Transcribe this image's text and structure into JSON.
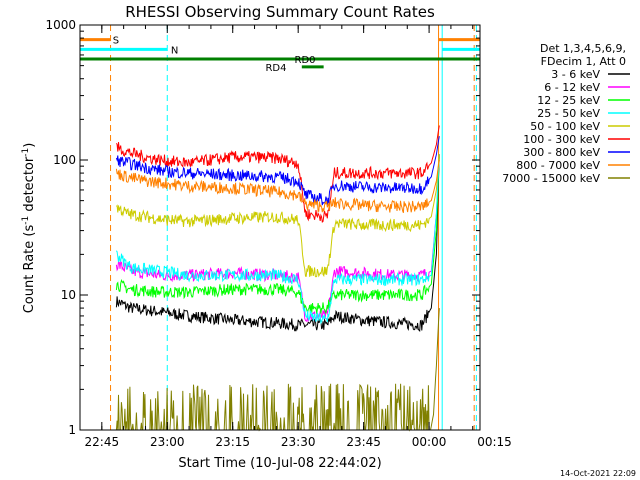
{
  "chart_data": {
    "type": "line",
    "title": "RHESSI Observing Summary Count Rates",
    "xlabel": "Start Time (10-Jul-08 22:44:02)",
    "ylabel_main": "Count Rate (s",
    "ylabel_sup1": "-1",
    "ylabel_mid": " detector",
    "ylabel_sup2": "-1",
    "ylabel_end": ")",
    "y_scale": "log",
    "ylim": [
      1,
      1000
    ],
    "xlim_minutes": [
      -3,
      52
    ],
    "y_ticks": [
      {
        "v": 1,
        "label": "1"
      },
      {
        "v": 10,
        "label": "10"
      },
      {
        "v": 100,
        "label": "100"
      },
      {
        "v": 1000,
        "label": "1000"
      }
    ],
    "x_ticks": [
      {
        "t": 0,
        "label": "22:45"
      },
      {
        "t": 9,
        "label": "23:00"
      },
      {
        "t": 18,
        "label": "23:15"
      },
      {
        "t": 27,
        "label": "23:30"
      },
      {
        "t": 36,
        "label": "23:45"
      },
      {
        "t": 45,
        "label": "00:00"
      },
      {
        "t": 54,
        "label": "00:15"
      }
    ],
    "legend_header": [
      "Det 1,3,4,5,6,9,",
      "FDecim 1, Att 0"
    ],
    "legend_position": "right",
    "series": [
      {
        "name": "3 - 6 keV",
        "color": "#000000",
        "points": [
          [
            2.0,
            9
          ],
          [
            4,
            8
          ],
          [
            8,
            7.5
          ],
          [
            12,
            7
          ],
          [
            18,
            6.5
          ],
          [
            24,
            6.2
          ],
          [
            27,
            6
          ],
          [
            28,
            6
          ],
          [
            31,
            6
          ],
          [
            32,
            7
          ],
          [
            36,
            6.5
          ],
          [
            40,
            6.2
          ],
          [
            44,
            6
          ],
          [
            45.3,
            8
          ],
          [
            46,
            20
          ],
          [
            46.4,
            110
          ]
        ]
      },
      {
        "name": "6 - 12 keV",
        "color": "#ff00ff",
        "points": [
          [
            2.0,
            17
          ],
          [
            4,
            15
          ],
          [
            8,
            14
          ],
          [
            12,
            14
          ],
          [
            18,
            14.5
          ],
          [
            24,
            14
          ],
          [
            27,
            13.5
          ],
          [
            28,
            7
          ],
          [
            31,
            7
          ],
          [
            32,
            15
          ],
          [
            36,
            14.5
          ],
          [
            40,
            14
          ],
          [
            44,
            14
          ],
          [
            45.3,
            15
          ],
          [
            46,
            40
          ],
          [
            46.4,
            110
          ]
        ]
      },
      {
        "name": "12 - 25 keV",
        "color": "#00ff00",
        "points": [
          [
            2.0,
            12
          ],
          [
            4,
            11
          ],
          [
            8,
            10.5
          ],
          [
            12,
            10.5
          ],
          [
            18,
            11
          ],
          [
            24,
            11
          ],
          [
            27,
            10.5
          ],
          [
            28,
            8
          ],
          [
            31,
            8
          ],
          [
            32,
            10
          ],
          [
            36,
            10
          ],
          [
            40,
            10
          ],
          [
            44,
            10
          ],
          [
            45.3,
            12
          ],
          [
            46,
            30
          ],
          [
            46.4,
            110
          ]
        ]
      },
      {
        "name": "25 - 50 keV",
        "color": "#00ffff",
        "points": [
          [
            2.0,
            20
          ],
          [
            4,
            16
          ],
          [
            8,
            15
          ],
          [
            12,
            14
          ],
          [
            18,
            14
          ],
          [
            24,
            14
          ],
          [
            27,
            13
          ],
          [
            28,
            7
          ],
          [
            31,
            6.5
          ],
          [
            32,
            13
          ],
          [
            36,
            13
          ],
          [
            40,
            13
          ],
          [
            44,
            13
          ],
          [
            45.3,
            14
          ],
          [
            46,
            40
          ],
          [
            46.4,
            110
          ]
        ]
      },
      {
        "name": "50 - 100 keV",
        "color": "#cccc00",
        "points": [
          [
            2.0,
            45
          ],
          [
            3.5,
            40
          ],
          [
            6,
            38
          ],
          [
            9,
            36
          ],
          [
            12,
            35
          ],
          [
            18,
            37
          ],
          [
            24,
            38
          ],
          [
            27,
            36
          ],
          [
            28,
            15
          ],
          [
            31,
            15
          ],
          [
            32,
            34
          ],
          [
            36,
            33
          ],
          [
            40,
            33
          ],
          [
            44,
            33
          ],
          [
            45.3,
            38
          ],
          [
            46,
            60
          ],
          [
            46.4,
            110
          ]
        ]
      },
      {
        "name": "100 - 300 keV",
        "color": "#ff0000",
        "points": [
          [
            2.0,
            125
          ],
          [
            3.5,
            115
          ],
          [
            6,
            105
          ],
          [
            9,
            98
          ],
          [
            12,
            95
          ],
          [
            15,
            100
          ],
          [
            18,
            105
          ],
          [
            21,
            105
          ],
          [
            24,
            103
          ],
          [
            27,
            95
          ],
          [
            28,
            40
          ],
          [
            31,
            38
          ],
          [
            32,
            80
          ],
          [
            36,
            80
          ],
          [
            40,
            80
          ],
          [
            44,
            80
          ],
          [
            45.3,
            95
          ],
          [
            46,
            130
          ],
          [
            46.4,
            180
          ]
        ]
      },
      {
        "name": "300 - 800 keV",
        "color": "#0000ff",
        "points": [
          [
            2.0,
            100
          ],
          [
            3.5,
            95
          ],
          [
            6,
            88
          ],
          [
            9,
            82
          ],
          [
            12,
            80
          ],
          [
            18,
            77
          ],
          [
            24,
            75
          ],
          [
            27,
            70
          ],
          [
            28,
            55
          ],
          [
            31,
            50
          ],
          [
            32,
            65
          ],
          [
            36,
            63
          ],
          [
            40,
            62
          ],
          [
            44,
            62
          ],
          [
            45.3,
            75
          ],
          [
            46,
            110
          ],
          [
            46.4,
            150
          ]
        ]
      },
      {
        "name": "800 - 7000 keV",
        "color": "#ff8000",
        "points": [
          [
            2.0,
            80
          ],
          [
            3.5,
            75
          ],
          [
            6,
            70
          ],
          [
            9,
            67
          ],
          [
            12,
            64
          ],
          [
            18,
            62
          ],
          [
            24,
            58
          ],
          [
            27,
            55
          ],
          [
            28,
            47
          ],
          [
            31,
            45
          ],
          [
            32,
            48
          ],
          [
            36,
            46
          ],
          [
            40,
            45
          ],
          [
            44,
            45
          ],
          [
            45.3,
            50
          ],
          [
            46,
            70
          ],
          [
            46.4,
            100
          ]
        ]
      },
      {
        "name": "7000 - 15000 keV",
        "color": "#808000",
        "points": [
          [
            2.0,
            1
          ],
          [
            45.2,
            1
          ],
          [
            45.6,
            1.3
          ],
          [
            46,
            3
          ],
          [
            46.4,
            8
          ]
        ]
      }
    ],
    "attenuator_bars": [
      {
        "label": "S",
        "color": "#ff8000",
        "t0": -3,
        "t1": 1.2,
        "v": 780,
        "label_t": 1.5
      },
      {
        "label": "N",
        "color": "#00ffff",
        "t0": -3,
        "t1": 9,
        "v": 660,
        "label_t": 9.5
      },
      {
        "label": "RD0",
        "color": "#008000",
        "t0": -3,
        "t1": 52,
        "v": 560,
        "label_t": 26.5
      },
      {
        "label": "RD4",
        "color": "#008000",
        "t0": 27.5,
        "t1": 30.5,
        "v": 490,
        "label_t": 22.5
      },
      {
        "label": "",
        "color": "#ff8000",
        "t0": 46.3,
        "t1": 52,
        "v": 780,
        "label_t": 0
      },
      {
        "label": "",
        "color": "#00ffff",
        "t0": 46.8,
        "t1": 52,
        "v": 660,
        "label_t": 0
      }
    ],
    "vertical_lines": [
      {
        "t": -3,
        "color": "#00ffff",
        "dash": false
      },
      {
        "t": 1.2,
        "color": "#ff8000",
        "dash": true
      },
      {
        "t": 9,
        "color": "#00ffff",
        "dash": true
      },
      {
        "t": 46.3,
        "color": "#ff8000",
        "dash": false
      },
      {
        "t": 46.8,
        "color": "#00ffff",
        "dash": false
      },
      {
        "t": 51.2,
        "color": "#ff8000",
        "dash": true
      },
      {
        "t": 51.5,
        "color": "#00ffff",
        "dash": true
      }
    ],
    "timestamp": "14-Oct-2021 22:09"
  }
}
